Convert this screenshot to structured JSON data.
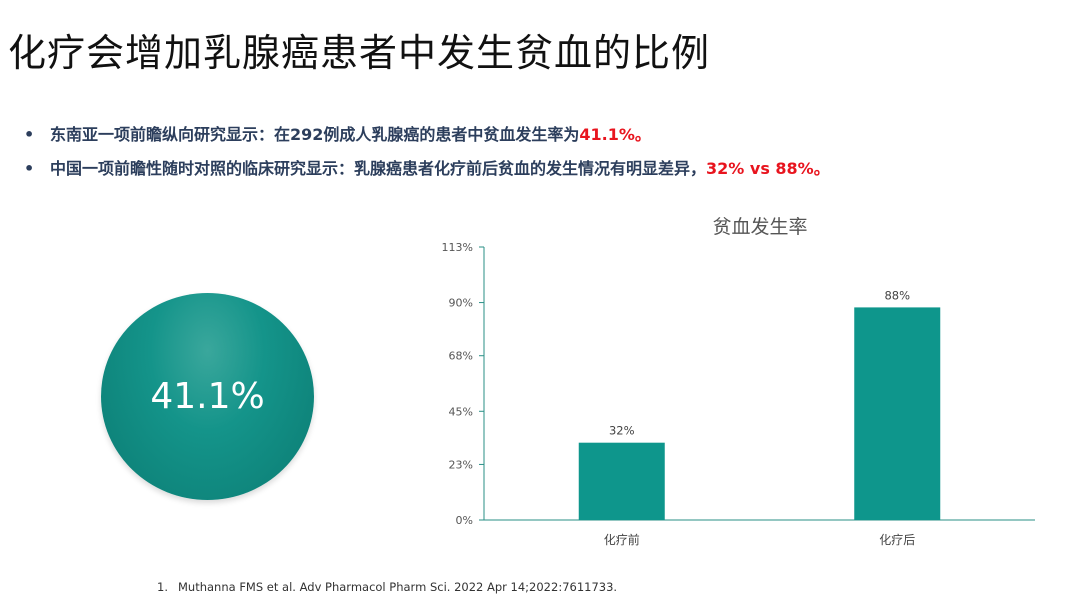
{
  "slide": {
    "title": "化疗会增加乳腺癌患者中发生贫血的比例",
    "bullets": [
      {
        "text": "东南亚一项前瞻纵向研究显示：在292例成人乳腺癌的患者中贫血发生率为",
        "highlight": "41.1%。"
      },
      {
        "text": "中国一项前瞻性随时对照的临床研究显示：乳腺癌患者化疗前后贫血的发生情况有明显差异，",
        "highlight": "32% vs 88%。"
      }
    ],
    "circle_value": "41.1%",
    "reference": {
      "number": "1.",
      "text": "Muthanna FMS et al. Adv Pharmacol Pharm Sci. 2022 Apr 14;2022:7611733."
    }
  },
  "colors": {
    "teal": "#0e968c",
    "highlight": "#e8141e",
    "bullet_text": "#2c3e5c"
  },
  "chart_data": {
    "type": "bar",
    "title": "贫血发生率",
    "categories": [
      "化疗前",
      "化疗后"
    ],
    "values": [
      32,
      88
    ],
    "data_labels": [
      "32%",
      "88%"
    ],
    "yticks": [
      "0%",
      "23%",
      "45%",
      "68%",
      "90%",
      "113%"
    ],
    "ylim": [
      0,
      113
    ],
    "xlabel": "",
    "ylabel": "",
    "grid": false,
    "legend": "none"
  }
}
